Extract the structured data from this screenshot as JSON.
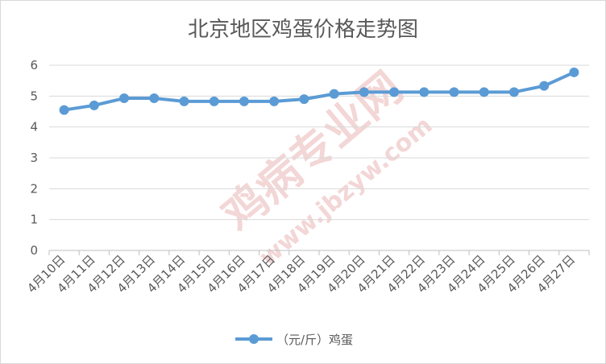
{
  "chart_data": {
    "type": "line",
    "title": "北京地区鸡蛋价格走势图",
    "categories": [
      "4月10日",
      "4月11日",
      "4月12日",
      "4月13日",
      "4月14日",
      "4月15日",
      "4月16日",
      "4月17日",
      "4月18日",
      "4月19日",
      "4月20日",
      "4月21日",
      "4月22日",
      "4月23日",
      "4月24日",
      "4月25日",
      "4月26日",
      "4月27日"
    ],
    "series": [
      {
        "name": "（元/斤）鸡蛋",
        "values": [
          4.55,
          4.7,
          4.93,
          4.93,
          4.83,
          4.83,
          4.83,
          4.83,
          4.9,
          5.07,
          5.13,
          5.13,
          5.13,
          5.13,
          5.13,
          5.13,
          5.33,
          5.77
        ],
        "color": "#5b9bd5"
      }
    ],
    "ylim": [
      0,
      6
    ],
    "yticks": [
      "0",
      "1",
      "2",
      "3",
      "4",
      "5",
      "6"
    ],
    "grid": true,
    "legend_position": "bottom",
    "xlabel": "",
    "ylabel": ""
  },
  "watermark": {
    "main_text": "鸡病专业网",
    "url_text": "www.jbzyw.com"
  }
}
